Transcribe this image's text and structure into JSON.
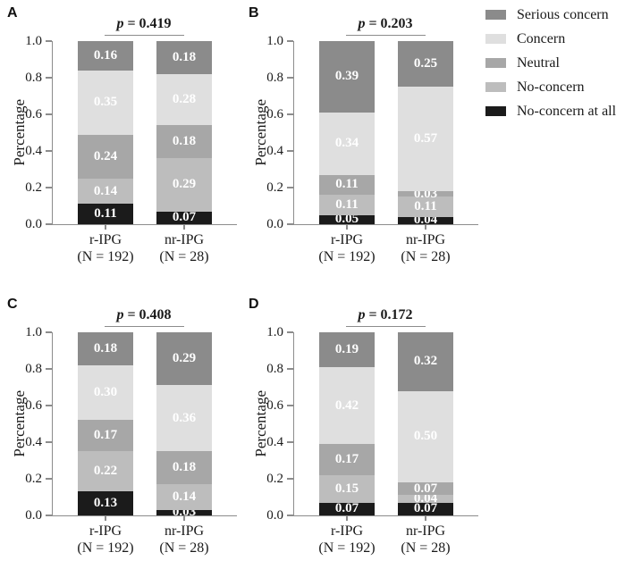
{
  "figure": {
    "y_axis_label": "Percentage",
    "y_tick_labels": [
      "1.0",
      "0.8",
      "0.6",
      "0.4",
      "0.2",
      "0.0"
    ],
    "colors": {
      "axis": "#8c8c8c",
      "text": "#1a1a1a",
      "segment_label_text": "#ffffff"
    },
    "legend": [
      {
        "label": "Serious concern",
        "color": "#8b8b8b"
      },
      {
        "label": "Concern",
        "color": "#dfdfdf"
      },
      {
        "label": "Neutral",
        "color": "#a7a7a7"
      },
      {
        "label": "No-concern",
        "color": "#bdbdbd"
      },
      {
        "label": "No-concern at all",
        "color": "#1b1b1b"
      }
    ]
  },
  "chart_data": [
    {
      "panel": "A",
      "type": "bar",
      "stacked": true,
      "p_text": "p = 0.419",
      "ylabel": "Percentage",
      "ylim": [
        0,
        1.0
      ],
      "yticks": [
        0.0,
        0.2,
        0.4,
        0.6,
        0.8,
        1.0
      ],
      "categories": [
        {
          "name": "r-IPG",
          "n": "(N = 192)"
        },
        {
          "name": "nr-IPG",
          "n": "(N = 28)"
        }
      ],
      "series": [
        {
          "name": "No-concern at all",
          "values": [
            0.11,
            0.07
          ]
        },
        {
          "name": "No-concern",
          "values": [
            0.14,
            0.29
          ]
        },
        {
          "name": "Neutral",
          "values": [
            0.24,
            0.18
          ]
        },
        {
          "name": "Concern",
          "values": [
            0.35,
            0.28
          ]
        },
        {
          "name": "Serious concern",
          "values": [
            0.16,
            0.18
          ]
        }
      ]
    },
    {
      "panel": "B",
      "type": "bar",
      "stacked": true,
      "p_text": "p = 0.203",
      "ylabel": "Percentage",
      "ylim": [
        0,
        1.0
      ],
      "yticks": [
        0.0,
        0.2,
        0.4,
        0.6,
        0.8,
        1.0
      ],
      "categories": [
        {
          "name": "r-IPG",
          "n": "(N = 192)"
        },
        {
          "name": "nr-IPG",
          "n": "(N = 28)"
        }
      ],
      "series": [
        {
          "name": "No-concern at all",
          "values": [
            0.05,
            0.04
          ]
        },
        {
          "name": "No-concern",
          "values": [
            0.11,
            0.11
          ]
        },
        {
          "name": "Neutral",
          "values": [
            0.11,
            0.03
          ]
        },
        {
          "name": "Concern",
          "values": [
            0.34,
            0.57
          ]
        },
        {
          "name": "Serious concern",
          "values": [
            0.39,
            0.25
          ]
        }
      ]
    },
    {
      "panel": "C",
      "type": "bar",
      "stacked": true,
      "p_text": "p = 0.408",
      "ylabel": "Percentage",
      "ylim": [
        0,
        1.0
      ],
      "yticks": [
        0.0,
        0.2,
        0.4,
        0.6,
        0.8,
        1.0
      ],
      "categories": [
        {
          "name": "r-IPG",
          "n": "(N = 192)"
        },
        {
          "name": "nr-IPG",
          "n": "(N = 28)"
        }
      ],
      "series": [
        {
          "name": "No-concern at all",
          "values": [
            0.13,
            0.03
          ]
        },
        {
          "name": "No-concern",
          "values": [
            0.22,
            0.14
          ]
        },
        {
          "name": "Neutral",
          "values": [
            0.17,
            0.18
          ]
        },
        {
          "name": "Concern",
          "values": [
            0.3,
            0.36
          ]
        },
        {
          "name": "Serious concern",
          "values": [
            0.18,
            0.29
          ]
        }
      ]
    },
    {
      "panel": "D",
      "type": "bar",
      "stacked": true,
      "p_text": "p = 0.172",
      "ylabel": "Percentage",
      "ylim": [
        0,
        1.0
      ],
      "yticks": [
        0.0,
        0.2,
        0.4,
        0.6,
        0.8,
        1.0
      ],
      "categories": [
        {
          "name": "r-IPG",
          "n": "(N = 192)"
        },
        {
          "name": "nr-IPG",
          "n": "(N = 28)"
        }
      ],
      "series": [
        {
          "name": "No-concern at all",
          "values": [
            0.07,
            0.07
          ]
        },
        {
          "name": "No-concern",
          "values": [
            0.15,
            0.04
          ]
        },
        {
          "name": "Neutral",
          "values": [
            0.17,
            0.07
          ]
        },
        {
          "name": "Concern",
          "values": [
            0.42,
            0.5
          ]
        },
        {
          "name": "Serious concern",
          "values": [
            0.19,
            0.32
          ]
        }
      ]
    }
  ]
}
